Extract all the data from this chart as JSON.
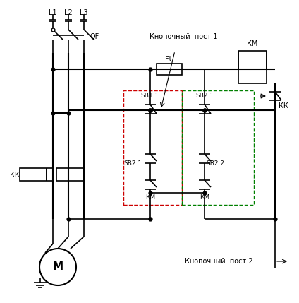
{
  "bg_color": "#ffffff",
  "line_color": "#000000",
  "red_dash_color": "#cc0000",
  "green_dash_color": "#008000",
  "figsize": [
    4.24,
    4.29
  ],
  "dpi": 100,
  "labels": {
    "L1": "L1",
    "L2": "L2",
    "L3": "L3",
    "QF": "QF",
    "FU": "FU",
    "KM": "КМ",
    "KK": "КК",
    "SB11": "SB1.1",
    "SB21a": "SB2.1",
    "SB21b": "SB2.1",
    "SB22": "SB2.2",
    "post1": "Кнопочный  пост 1",
    "post2": "Кнопочный  пост 2",
    "M": "М"
  }
}
